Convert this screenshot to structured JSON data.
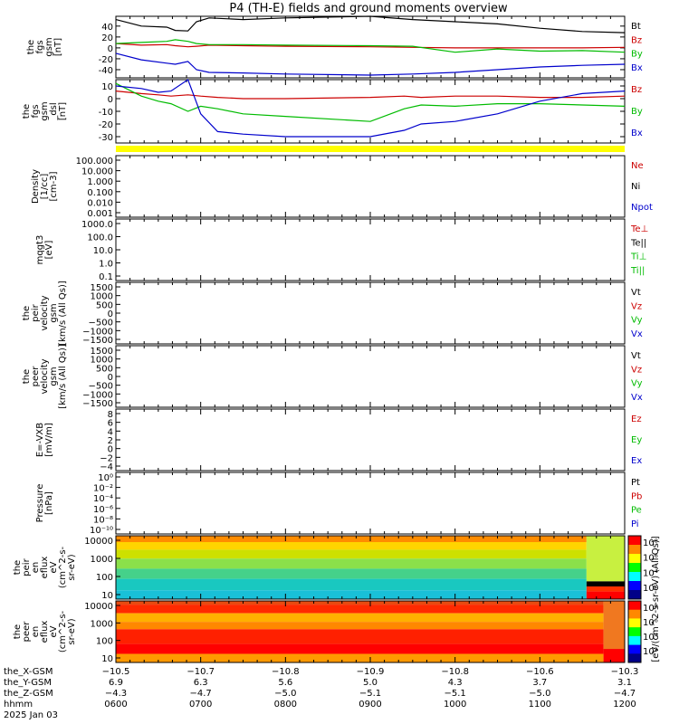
{
  "chart_data": {
    "type": "line",
    "title": "P4 (TH-E) fields and ground moments overview",
    "panels": [
      {
        "id": "fgs-gsm",
        "ylabel": [
          "the",
          "fgs",
          "gsm",
          "[nT]"
        ],
        "ylim": [
          -55,
          58
        ],
        "yticks": [
          40,
          20,
          0,
          -20,
          -40
        ],
        "legend": [
          {
            "label": "Bt",
            "color": "#000000"
          },
          {
            "label": "Bz",
            "color": "#cc0000"
          },
          {
            "label": "By",
            "color": "#00bb00"
          },
          {
            "label": "Bx",
            "color": "#0000cc"
          }
        ],
        "x_hours": [
          6.0,
          6.3,
          6.6,
          6.7,
          6.85,
          6.95,
          7.1,
          7.5,
          8.0,
          9.0,
          9.5,
          10.0,
          10.5,
          11.0,
          11.5,
          12.0
        ],
        "series": [
          {
            "name": "Bt",
            "color": "#000000",
            "values": [
              52,
              40,
              38,
              32,
              31,
              48,
              55,
              52,
              55,
              58,
              52,
              48,
              44,
              36,
              30,
              28
            ]
          },
          {
            "name": "Bz",
            "color": "#cc0000",
            "values": [
              8,
              5,
              6,
              4,
              2,
              3,
              5,
              4,
              3,
              2,
              1,
              0,
              0,
              0,
              0,
              1
            ]
          },
          {
            "name": "By",
            "color": "#00bb00",
            "values": [
              8,
              10,
              12,
              15,
              12,
              8,
              6,
              6,
              5,
              4,
              3,
              -8,
              -2,
              -6,
              -5,
              -8
            ]
          },
          {
            "name": "Bx",
            "color": "#0000cc",
            "values": [
              -10,
              -22,
              -28,
              -30,
              -25,
              -40,
              -45,
              -46,
              -48,
              -50,
              -48,
              -45,
              -40,
              -35,
              -32,
              -30
            ]
          }
        ]
      },
      {
        "id": "fgs-gsm-dsl",
        "ylabel": [
          "the",
          "fgs",
          "gsm",
          "_dsl",
          "[nT]"
        ],
        "ylim": [
          -35,
          15
        ],
        "yticks": [
          10,
          0,
          -10,
          -20,
          -30
        ],
        "legend": [
          {
            "label": "Bz",
            "color": "#cc0000"
          },
          {
            "label": "By",
            "color": "#00bb00"
          },
          {
            "label": "Bx",
            "color": "#0000cc"
          }
        ],
        "x_hours": [
          6.0,
          6.3,
          6.5,
          6.65,
          6.85,
          7.0,
          7.2,
          7.5,
          8.0,
          9.0,
          9.4,
          9.6,
          10.0,
          10.5,
          11.0,
          11.5,
          12.0
        ],
        "series": [
          {
            "name": "Bz",
            "color": "#cc0000",
            "values": [
              6,
              4,
              3,
              2,
              3,
              2,
              1,
              0,
              0,
              1,
              2,
              1,
              2,
              2,
              1,
              1,
              2
            ]
          },
          {
            "name": "By",
            "color": "#00bb00",
            "values": [
              12,
              2,
              -2,
              -4,
              -10,
              -6,
              -8,
              -12,
              -14,
              -18,
              -8,
              -5,
              -6,
              -4,
              -4,
              -5,
              -6
            ]
          },
          {
            "name": "Bx",
            "color": "#0000cc",
            "values": [
              10,
              8,
              5,
              6,
              15,
              -12,
              -26,
              -28,
              -30,
              -30,
              -25,
              -20,
              -18,
              -12,
              -2,
              4,
              6
            ]
          }
        ]
      },
      {
        "id": "density",
        "ylabel": [
          "Density",
          "[1/cc]",
          "[cm-3]"
        ],
        "yticks": [
          "100.000",
          "10.000",
          "1.000",
          "0.100",
          "0.010",
          "0.001"
        ],
        "legend": [
          {
            "label": "Ne",
            "color": "#cc0000"
          },
          {
            "label": "Ni",
            "color": "#000000"
          },
          {
            "label": "Npot",
            "color": "#0000cc"
          }
        ]
      },
      {
        "id": "temperature",
        "ylabel": [
          "mqgt3",
          "[eV]"
        ],
        "yticks": [
          "1000.0",
          "100.0",
          "10.0",
          "1.0",
          "0.1"
        ],
        "legend": [
          {
            "label": "Te⊥",
            "color": "#cc0000"
          },
          {
            "label": "Te||",
            "color": "#000000"
          },
          {
            "label": "Ti⊥",
            "color": "#00bb00"
          },
          {
            "label": "Ti||",
            "color": "#00bb00"
          }
        ]
      },
      {
        "id": "peir-velocity",
        "ylabel": [
          "the",
          "peir",
          "velocity",
          "gsm",
          "[km/s (All Qs)]"
        ],
        "yticks": [
          "1500",
          "1000",
          "500",
          "0",
          "−500",
          "−1000",
          "−1500"
        ],
        "legend": [
          {
            "label": "Vt",
            "color": "#000000"
          },
          {
            "label": "Vz",
            "color": "#cc0000"
          },
          {
            "label": "Vy",
            "color": "#00bb00"
          },
          {
            "label": "Vx",
            "color": "#0000cc"
          }
        ]
      },
      {
        "id": "peer-velocity",
        "ylabel": [
          "the",
          "peer",
          "velocity",
          "gsm",
          "[km/s (All Qs)]"
        ],
        "yticks": [
          "1500",
          "1000",
          "500",
          "0",
          "−500",
          "−1000",
          "−1500"
        ],
        "legend": [
          {
            "label": "Vt",
            "color": "#000000"
          },
          {
            "label": "Vz",
            "color": "#cc0000"
          },
          {
            "label": "Vy",
            "color": "#00bb00"
          },
          {
            "label": "Vx",
            "color": "#0000cc"
          }
        ]
      },
      {
        "id": "e-field",
        "ylabel": [
          "E=-VXB",
          "[mV/m]"
        ],
        "yticks": [
          "8",
          "6",
          "4",
          "2",
          "0",
          "−2",
          "−4"
        ],
        "legend": [
          {
            "label": "Ez",
            "color": "#cc0000"
          },
          {
            "label": "Ey",
            "color": "#00bb00"
          },
          {
            "label": "Ex",
            "color": "#0000cc"
          }
        ]
      },
      {
        "id": "pressure",
        "ylabel": [
          "Pressure",
          "[nPa]"
        ],
        "yticks": [
          "10⁰",
          "10⁻²",
          "10⁻⁴",
          "10⁻⁶",
          "10⁻⁸",
          "10⁻¹⁰"
        ],
        "legend": [
          {
            "label": "Pt",
            "color": "#000000"
          },
          {
            "label": "Pb",
            "color": "#cc0000"
          },
          {
            "label": "Pe",
            "color": "#00bb00"
          },
          {
            "label": "Pi",
            "color": "#0000cc"
          }
        ]
      }
    ],
    "spectrograms": [
      {
        "id": "peir-en-eflux",
        "ylabel": [
          "the",
          "peir",
          "en",
          "eflux",
          "eV",
          "(cm^2-s-",
          "sr-eV)"
        ],
        "yticks": [
          "10000",
          "1000",
          "100",
          "10"
        ],
        "colorbar_ticks": [
          "10⁸",
          "10⁶",
          "10⁴",
          "10²"
        ]
      },
      {
        "id": "peer-en-eflux",
        "ylabel": [
          "the",
          "peer",
          "en",
          "eflux",
          "eV",
          "(cm^2-s-",
          "sr-eV)"
        ],
        "yticks": [
          "10000",
          "1000",
          "100",
          "10"
        ],
        "colorbar_ticks": [
          "10⁸",
          "10⁶",
          "10⁴",
          "10²"
        ]
      }
    ],
    "colorbar_label": "[eV/(cm^2-s-sr-eV) (All Qs)]",
    "state_bar_color": "#ffff00",
    "x_axis": {
      "row_labels": [
        "the_X-GSM",
        "the_Y-GSM",
        "the_Z-GSM",
        "hhmm",
        "2025 Jan 03"
      ],
      "columns": [
        {
          "x": "−10.5",
          "y": "6.9",
          "z": "−4.3",
          "hhmm": "0600"
        },
        {
          "x": "−10.7",
          "y": "6.3",
          "z": "−4.7",
          "hhmm": "0700"
        },
        {
          "x": "−10.8",
          "y": "5.6",
          "z": "−5.0",
          "hhmm": "0800"
        },
        {
          "x": "−10.9",
          "y": "5.0",
          "z": "−5.1",
          "hhmm": "0900"
        },
        {
          "x": "−10.8",
          "y": "4.3",
          "z": "−5.1",
          "hhmm": "1000"
        },
        {
          "x": "−10.6",
          "y": "3.7",
          "z": "−5.0",
          "hhmm": "1100"
        },
        {
          "x": "−10.3",
          "y": "3.1",
          "z": "−4.7",
          "hhmm": "1200"
        }
      ]
    }
  }
}
